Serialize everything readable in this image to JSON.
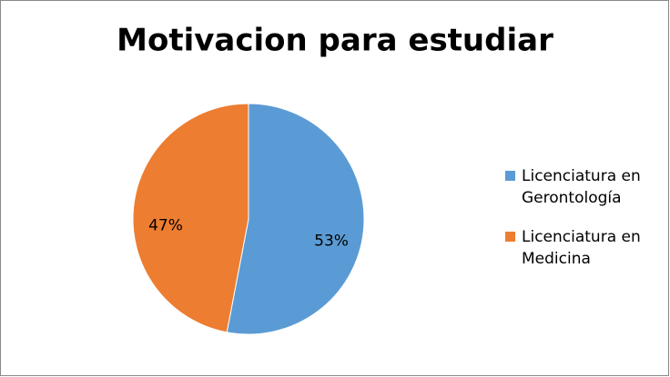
{
  "chart_data": {
    "type": "pie",
    "title": "Motivacion para estudiar",
    "categories": [
      "Licenciatura en Gerontología",
      "Licenciatura en Medicina"
    ],
    "values": [
      53,
      47
    ],
    "value_labels": [
      "53%",
      "47%"
    ],
    "colors": [
      "#5b9bd5",
      "#ed7d31"
    ],
    "legend": "right"
  }
}
